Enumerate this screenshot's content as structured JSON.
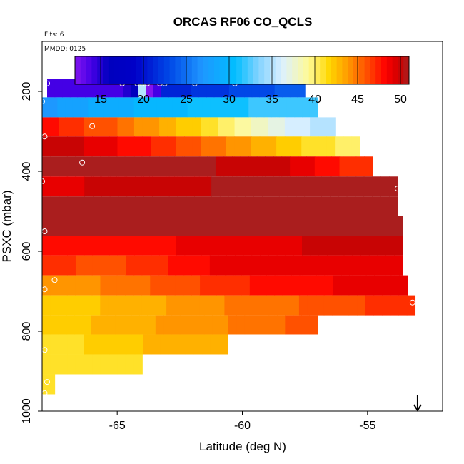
{
  "chart_data": {
    "type": "heatmap",
    "title": "ORCAS RF06 CO_QCLS",
    "flights_label": "Flts: 6",
    "date_label": "MMDD: 0125",
    "xlabel": "Latitude (deg N)",
    "ylabel": "PSXC (mbar)",
    "xlim": [
      -68.0,
      -52.0
    ],
    "ylim": [
      1000,
      75
    ],
    "x_ticks": [
      -65,
      -60,
      -55
    ],
    "x_tick_labels": [
      "-65",
      "-60",
      "-55"
    ],
    "y_ticks": [
      200,
      400,
      600,
      800,
      1000
    ],
    "y_tick_labels": [
      "200",
      "400",
      "600",
      "800",
      "1000"
    ],
    "colorbar": {
      "min": 12,
      "max": 51,
      "ticks": [
        15,
        20,
        25,
        30,
        35,
        40,
        45,
        50
      ],
      "tick_labels": [
        "15",
        "20",
        "25",
        "30",
        "35",
        "40",
        "45",
        "50"
      ]
    },
    "bands": [
      {
        "p_top": 168,
        "p_bot": 215,
        "lat_start": -67.8,
        "lat_end": -57.5,
        "values": [
          14,
          14,
          14,
          14,
          14,
          14,
          14,
          14,
          14,
          14,
          15,
          16,
          35,
          12,
          14,
          21,
          21,
          21,
          21,
          22,
          22,
          22,
          22,
          22,
          23,
          23,
          23,
          23,
          23,
          23,
          24,
          24,
          24,
          24
        ]
      },
      {
        "p_top": 215,
        "p_bot": 265,
        "lat_start": -68.0,
        "lat_end": -57.0,
        "values": [
          27,
          27,
          28,
          28,
          28,
          28,
          29,
          29,
          29,
          29,
          29,
          29,
          30,
          30,
          30,
          30,
          30,
          30,
          30,
          31,
          31,
          31,
          31,
          31,
          31,
          31,
          31,
          32,
          32,
          32,
          32,
          32,
          32,
          32,
          32,
          32
        ]
      },
      {
        "p_top": 265,
        "p_bot": 313,
        "lat_start": -68.0,
        "lat_end": -56.3,
        "values": [
          48,
          48,
          47,
          47,
          47,
          46,
          46,
          46,
          46,
          45,
          45,
          44,
          44,
          44,
          43,
          43,
          42,
          42,
          42,
          41,
          41,
          40,
          40,
          39,
          39,
          38,
          38,
          37,
          37,
          36,
          36,
          36,
          35,
          35,
          35
        ]
      },
      {
        "p_top": 313,
        "p_bot": 363,
        "lat_start": -68.0,
        "lat_end": -55.3,
        "values": [
          50,
          50,
          50,
          50,
          50,
          49,
          49,
          49,
          49,
          48,
          48,
          48,
          48,
          47,
          47,
          47,
          46,
          46,
          46,
          45,
          45,
          45,
          44,
          44,
          44,
          43,
          43,
          43,
          42,
          42,
          42,
          41,
          41,
          41,
          41,
          40,
          40,
          40
        ]
      },
      {
        "p_top": 363,
        "p_bot": 413,
        "lat_start": -68.0,
        "lat_end": -54.8,
        "values": [
          51,
          51,
          51,
          51,
          51,
          51,
          51,
          51,
          51,
          51,
          51,
          51,
          51,
          51,
          51,
          51,
          51,
          51,
          51,
          51,
          51,
          50,
          50,
          50,
          50,
          50,
          50,
          50,
          50,
          50,
          49,
          49,
          49,
          48,
          48,
          48,
          47,
          47,
          47,
          47
        ]
      },
      {
        "p_top": 413,
        "p_bot": 463,
        "lat_start": -68.0,
        "lat_end": -53.8,
        "values": [
          49,
          49,
          49,
          49,
          49,
          50,
          50,
          50,
          50,
          50,
          50,
          50,
          50,
          50,
          50,
          50,
          50,
          50,
          50,
          50,
          51,
          51,
          51,
          51,
          51,
          51,
          51,
          51,
          51,
          51,
          51,
          51,
          51,
          51,
          51,
          51,
          51,
          51,
          51,
          51,
          51,
          51
        ]
      },
      {
        "p_top": 463,
        "p_bot": 512,
        "lat_start": -68.0,
        "lat_end": -53.8,
        "values": [
          51,
          51,
          51,
          51,
          51,
          51,
          51,
          51,
          51,
          51,
          51,
          51,
          51,
          51,
          51,
          51,
          51,
          51,
          51,
          51,
          51,
          51,
          51,
          51,
          51,
          51,
          51,
          51,
          51,
          51,
          51,
          51,
          51,
          51,
          51,
          51,
          51,
          51,
          51,
          51,
          51,
          51
        ]
      },
      {
        "p_top": 512,
        "p_bot": 562,
        "lat_start": -68.0,
        "lat_end": -53.6,
        "values": [
          51,
          51,
          51,
          51,
          51,
          51,
          51,
          51,
          51,
          51,
          51,
          51,
          51,
          51,
          51,
          51,
          51,
          51,
          51,
          51,
          51,
          51,
          51,
          51,
          51,
          51,
          51,
          51,
          51,
          51,
          51,
          51,
          51,
          51,
          51,
          51,
          51,
          51,
          51,
          51,
          51,
          51,
          51
        ]
      },
      {
        "p_top": 562,
        "p_bot": 610,
        "lat_start": -68.0,
        "lat_end": -53.6,
        "values": [
          48,
          48,
          48,
          48,
          48,
          48,
          48,
          48,
          48,
          48,
          48,
          48,
          48,
          48,
          48,
          48,
          49,
          49,
          49,
          49,
          49,
          49,
          49,
          49,
          49,
          49,
          49,
          49,
          49,
          49,
          49,
          50,
          50,
          50,
          50,
          50,
          50,
          50,
          50,
          50,
          50,
          50,
          50
        ]
      },
      {
        "p_top": 610,
        "p_bot": 660,
        "lat_start": -68.0,
        "lat_end": -53.6,
        "values": [
          47,
          47,
          47,
          47,
          46,
          46,
          46,
          46,
          46,
          46,
          47,
          47,
          47,
          47,
          47,
          48,
          48,
          48,
          48,
          48,
          49,
          49,
          49,
          49,
          49,
          49,
          49,
          49,
          49,
          49,
          49,
          49,
          49,
          49,
          49,
          49,
          49,
          49,
          49,
          49,
          49,
          49,
          49
        ]
      },
      {
        "p_top": 660,
        "p_bot": 710,
        "lat_start": -68.0,
        "lat_end": -53.4,
        "values": [
          44,
          44,
          44,
          44,
          44,
          44,
          44,
          45,
          45,
          45,
          45,
          45,
          45,
          46,
          46,
          46,
          46,
          46,
          46,
          47,
          47,
          47,
          47,
          47,
          47,
          48,
          48,
          48,
          48,
          48,
          48,
          48,
          48,
          48,
          48,
          49,
          49,
          49,
          49,
          49,
          49,
          49,
          49,
          49
        ]
      },
      {
        "p_top": 710,
        "p_bot": 760,
        "lat_start": -68.0,
        "lat_end": -53.1,
        "values": [
          42,
          42,
          42,
          42,
          42,
          42,
          42,
          43,
          43,
          43,
          43,
          43,
          43,
          43,
          43,
          44,
          44,
          44,
          44,
          44,
          44,
          44,
          45,
          45,
          45,
          45,
          45,
          45,
          45,
          45,
          45,
          46,
          46,
          46,
          46,
          46,
          46,
          46,
          46,
          47,
          47,
          47,
          47,
          47,
          47
        ]
      },
      {
        "p_top": 760,
        "p_bot": 808,
        "lat_start": -68.0,
        "lat_end": -57.0,
        "values": [
          42,
          42,
          42,
          42,
          42,
          42,
          43,
          43,
          43,
          43,
          43,
          43,
          43,
          43,
          44,
          44,
          44,
          44,
          44,
          44,
          44,
          44,
          44,
          45,
          45,
          45,
          45,
          45,
          45,
          45,
          46,
          46,
          46,
          46
        ]
      },
      {
        "p_top": 808,
        "p_bot": 858,
        "lat_start": -68.0,
        "lat_end": -60.6,
        "values": [
          41,
          41,
          41,
          41,
          41,
          42,
          42,
          42,
          42,
          42,
          42,
          42,
          43,
          43,
          43,
          43,
          43,
          43,
          43,
          43,
          43,
          43
        ]
      },
      {
        "p_top": 858,
        "p_bot": 908,
        "lat_start": -68.0,
        "lat_end": -64.0,
        "values": [
          41,
          41,
          41,
          41,
          41,
          41,
          41,
          41,
          41,
          41,
          41,
          41
        ]
      },
      {
        "p_top": 908,
        "p_bot": 958,
        "lat_start": -68.0,
        "lat_end": -67.5,
        "values": [
          41,
          41
        ]
      }
    ],
    "points": [
      {
        "lat": -67.8,
        "p": 180
      },
      {
        "lat": -64.8,
        "p": 180
      },
      {
        "lat": -64.2,
        "p": 180
      },
      {
        "lat": -64.0,
        "p": 180
      },
      {
        "lat": -63.8,
        "p": 180
      },
      {
        "lat": -63.3,
        "p": 180
      },
      {
        "lat": -63.1,
        "p": 180
      },
      {
        "lat": -61.9,
        "p": 180
      },
      {
        "lat": -60.3,
        "p": 180
      },
      {
        "lat": -57.0,
        "p": 180
      },
      {
        "lat": -68.0,
        "p": 225
      },
      {
        "lat": -66.0,
        "p": 287
      },
      {
        "lat": -67.9,
        "p": 313
      },
      {
        "lat": -66.4,
        "p": 378
      },
      {
        "lat": -68.0,
        "p": 425
      },
      {
        "lat": -53.8,
        "p": 443
      },
      {
        "lat": -67.9,
        "p": 550
      },
      {
        "lat": -67.5,
        "p": 672
      },
      {
        "lat": -67.9,
        "p": 695
      },
      {
        "lat": -53.2,
        "p": 728
      },
      {
        "lat": -67.9,
        "p": 847
      },
      {
        "lat": -67.8,
        "p": 927
      },
      {
        "lat": -67.9,
        "p": 955
      }
    ],
    "markers": [
      {
        "type": "arrow-down",
        "lat": -53.0,
        "p_from": 960,
        "p_to": 1005
      }
    ]
  }
}
